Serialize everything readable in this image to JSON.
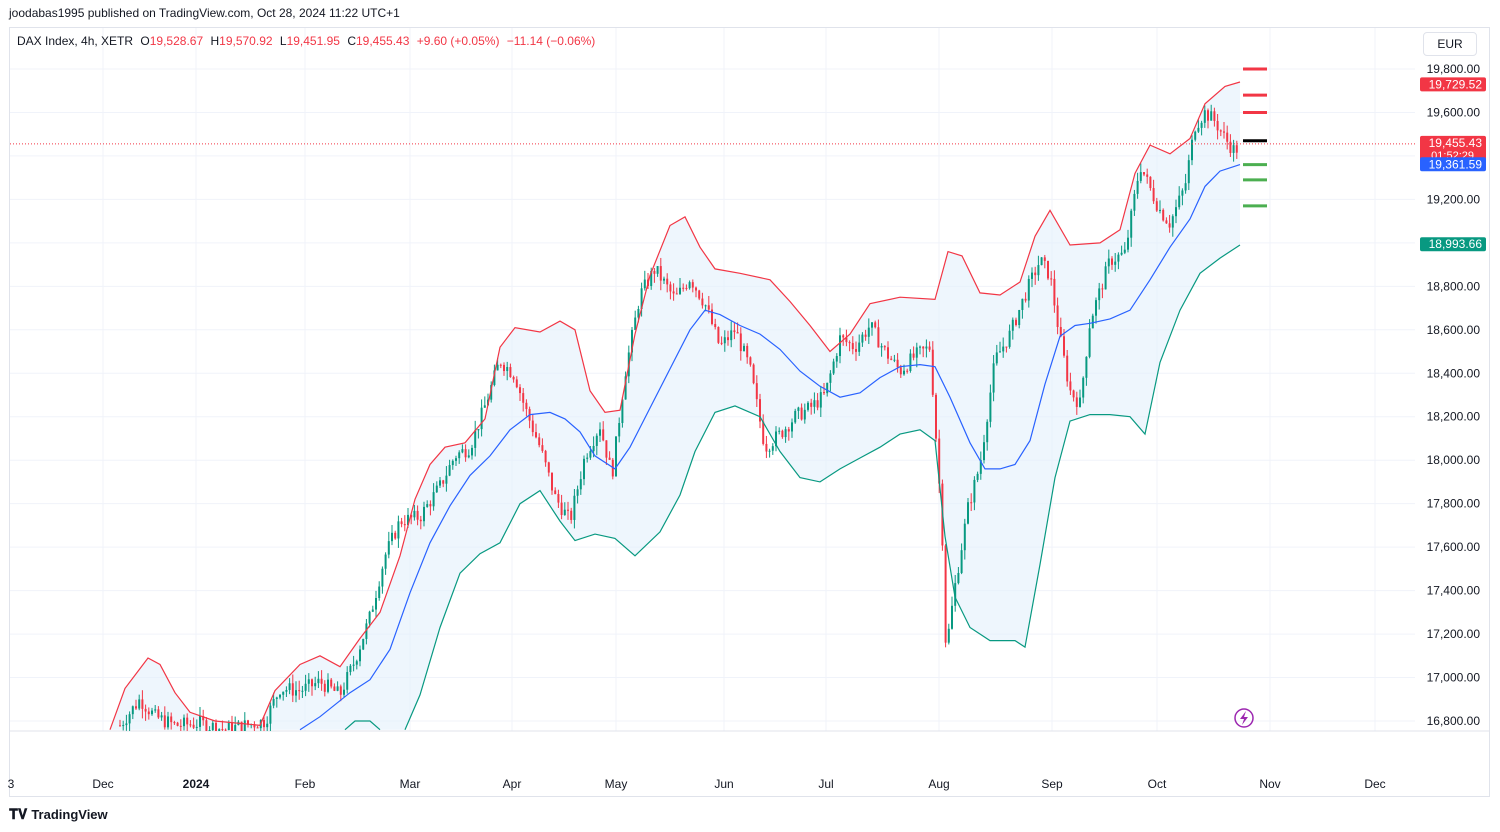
{
  "header": {
    "publish_text": "joodabas1995 published on TradingView.com, Oct 28, 2024 11:22 UTC+1"
  },
  "legend": {
    "symbol": "DAX Index, 4h, XETR",
    "open_label": "O",
    "open": "19,528.67",
    "high_label": "H",
    "high": "19,570.92",
    "low_label": "L",
    "low": "19,451.95",
    "close_label": "C",
    "close": "19,455.43",
    "change": "+9.60 (+0.05%)",
    "change2": "−11.14 (−0.06%)"
  },
  "currency": "EUR",
  "footer": {
    "brand": "TradingView"
  },
  "colors": {
    "up": "#089981",
    "down": "#f23645",
    "upper_band": "#f23645",
    "basis": "#2962ff",
    "lower_band": "#089981",
    "band_fill": "#e3f0fb"
  },
  "chart_data": {
    "type": "candlestick",
    "instrument": "DAX Index, 4h, XETR",
    "ylim": [
      16760,
      19930
    ],
    "y_ticks": [
      16800,
      17000,
      17200,
      17400,
      17600,
      17800,
      18000,
      18200,
      18400,
      18600,
      18800,
      19000,
      19200,
      19400,
      19600,
      19800
    ],
    "y_tick_labels": [
      "16,800.00",
      "17,000.00",
      "17,200.00",
      "17,400.00",
      "17,600.00",
      "17,800.00",
      "18,000.00",
      "18,200.00",
      "18,400.00",
      "18,600.00",
      "18,800.00",
      "19,000.00",
      "19,200.00",
      "19,400.00",
      "19,600.00",
      "19,800.00"
    ],
    "x_labels": [
      "3",
      "Dec",
      "2024",
      "Feb",
      "Mar",
      "Apr",
      "May",
      "Jun",
      "Jul",
      "Aug",
      "Sep",
      "Oct",
      "Nov",
      "Dec"
    ],
    "x_label_index": [
      -11,
      83,
      176,
      285,
      390,
      492,
      596,
      704,
      806,
      919,
      1032,
      1137,
      1250,
      1355
    ],
    "price_labels": [
      {
        "value": 19729.52,
        "text": "19,729.52",
        "color": "#f23645"
      },
      {
        "value": 19455.43,
        "text": "19,455.43",
        "sub": "01:52:29",
        "color": "#f23645"
      },
      {
        "value": 19361.59,
        "text": "19,361.59",
        "color": "#2962ff"
      },
      {
        "value": 18993.66,
        "text": "18,993.66",
        "color": "#089981"
      }
    ],
    "last_price": 19455.43,
    "bollinger": {
      "upper": [
        [
          110,
          16760
        ],
        [
          125,
          16950
        ],
        [
          148,
          17090
        ],
        [
          160,
          17060
        ],
        [
          175,
          16930
        ],
        [
          190,
          16840
        ],
        [
          215,
          16800
        ],
        [
          260,
          16780
        ],
        [
          275,
          16940
        ],
        [
          300,
          17060
        ],
        [
          320,
          17100
        ],
        [
          340,
          17050
        ],
        [
          360,
          17180
        ],
        [
          380,
          17300
        ],
        [
          400,
          17560
        ],
        [
          415,
          17820
        ],
        [
          430,
          17980
        ],
        [
          445,
          18060
        ],
        [
          465,
          18080
        ],
        [
          485,
          18190
        ],
        [
          500,
          18520
        ],
        [
          515,
          18610
        ],
        [
          540,
          18590
        ],
        [
          560,
          18640
        ],
        [
          575,
          18600
        ],
        [
          590,
          18320
        ],
        [
          605,
          18220
        ],
        [
          620,
          18230
        ],
        [
          635,
          18580
        ],
        [
          650,
          18850
        ],
        [
          670,
          19080
        ],
        [
          685,
          19120
        ],
        [
          700,
          18980
        ],
        [
          715,
          18880
        ],
        [
          740,
          18860
        ],
        [
          770,
          18830
        ],
        [
          790,
          18730
        ],
        [
          810,
          18620
        ],
        [
          830,
          18500
        ],
        [
          850,
          18580
        ],
        [
          870,
          18720
        ],
        [
          900,
          18750
        ],
        [
          935,
          18740
        ],
        [
          948,
          18960
        ],
        [
          962,
          18940
        ],
        [
          980,
          18770
        ],
        [
          1000,
          18760
        ],
        [
          1020,
          18820
        ],
        [
          1035,
          19030
        ],
        [
          1050,
          19150
        ],
        [
          1070,
          18990
        ],
        [
          1100,
          19000
        ],
        [
          1120,
          19060
        ],
        [
          1135,
          19320
        ],
        [
          1150,
          19450
        ],
        [
          1170,
          19410
        ],
        [
          1190,
          19480
        ],
        [
          1205,
          19640
        ],
        [
          1225,
          19720
        ],
        [
          1240,
          19740
        ]
      ],
      "basis": [
        [
          300,
          16760
        ],
        [
          320,
          16820
        ],
        [
          350,
          16930
        ],
        [
          370,
          16990
        ],
        [
          390,
          17130
        ],
        [
          410,
          17390
        ],
        [
          430,
          17620
        ],
        [
          450,
          17790
        ],
        [
          470,
          17930
        ],
        [
          490,
          18020
        ],
        [
          510,
          18140
        ],
        [
          530,
          18210
        ],
        [
          550,
          18220
        ],
        [
          565,
          18190
        ],
        [
          580,
          18130
        ],
        [
          595,
          18020
        ],
        [
          615,
          17960
        ],
        [
          630,
          18060
        ],
        [
          650,
          18240
        ],
        [
          670,
          18420
        ],
        [
          690,
          18600
        ],
        [
          705,
          18690
        ],
        [
          720,
          18670
        ],
        [
          740,
          18620
        ],
        [
          760,
          18580
        ],
        [
          780,
          18510
        ],
        [
          800,
          18410
        ],
        [
          820,
          18340
        ],
        [
          840,
          18290
        ],
        [
          860,
          18310
        ],
        [
          880,
          18380
        ],
        [
          900,
          18430
        ],
        [
          920,
          18440
        ],
        [
          935,
          18430
        ],
        [
          950,
          18290
        ],
        [
          970,
          18080
        ],
        [
          985,
          17960
        ],
        [
          1000,
          17960
        ],
        [
          1015,
          17980
        ],
        [
          1030,
          18090
        ],
        [
          1045,
          18350
        ],
        [
          1060,
          18570
        ],
        [
          1075,
          18620
        ],
        [
          1090,
          18630
        ],
        [
          1110,
          18650
        ],
        [
          1130,
          18690
        ],
        [
          1150,
          18830
        ],
        [
          1170,
          18980
        ],
        [
          1190,
          19110
        ],
        [
          1205,
          19260
        ],
        [
          1220,
          19330
        ],
        [
          1240,
          19360
        ]
      ],
      "lower": [
        [
          345,
          16760
        ],
        [
          355,
          16800
        ],
        [
          370,
          16800
        ],
        [
          380,
          16760
        ]
      ],
      "lower2": [
        [
          405,
          16760
        ],
        [
          420,
          16920
        ],
        [
          440,
          17230
        ],
        [
          460,
          17480
        ],
        [
          480,
          17570
        ],
        [
          500,
          17620
        ],
        [
          520,
          17800
        ],
        [
          540,
          17860
        ],
        [
          560,
          17720
        ],
        [
          575,
          17630
        ],
        [
          595,
          17660
        ],
        [
          615,
          17640
        ],
        [
          635,
          17560
        ],
        [
          660,
          17670
        ],
        [
          680,
          17840
        ],
        [
          695,
          18040
        ],
        [
          715,
          18220
        ],
        [
          735,
          18250
        ],
        [
          760,
          18200
        ],
        [
          780,
          18040
        ],
        [
          800,
          17920
        ],
        [
          820,
          17900
        ],
        [
          840,
          17960
        ],
        [
          860,
          18010
        ],
        [
          880,
          18060
        ],
        [
          900,
          18120
        ],
        [
          920,
          18140
        ],
        [
          935,
          18090
        ],
        [
          945,
          17650
        ],
        [
          955,
          17370
        ],
        [
          970,
          17230
        ],
        [
          990,
          17170
        ],
        [
          1015,
          17170
        ],
        [
          1025,
          17140
        ],
        [
          1040,
          17520
        ],
        [
          1055,
          17920
        ],
        [
          1070,
          18180
        ],
        [
          1090,
          18210
        ],
        [
          1110,
          18210
        ],
        [
          1130,
          18200
        ],
        [
          1145,
          18120
        ],
        [
          1160,
          18450
        ],
        [
          1180,
          18690
        ],
        [
          1200,
          18860
        ],
        [
          1220,
          18930
        ],
        [
          1240,
          18990
        ]
      ]
    },
    "candles_note": "4h OHLC candles spanning Nov 2023 to Oct 28, 2024 following the price path below",
    "price_path": [
      [
        120,
        16780
      ],
      [
        140,
        16900
      ],
      [
        155,
        16820
      ],
      [
        175,
        16780
      ],
      [
        200,
        16790
      ],
      [
        225,
        16760
      ],
      [
        265,
        16800
      ],
      [
        280,
        16950
      ],
      [
        300,
        16940
      ],
      [
        320,
        16980
      ],
      [
        340,
        16920
      ],
      [
        355,
        17080
      ],
      [
        370,
        17280
      ],
      [
        385,
        17560
      ],
      [
        400,
        17720
      ],
      [
        420,
        17740
      ],
      [
        440,
        17880
      ],
      [
        455,
        18020
      ],
      [
        470,
        18060
      ],
      [
        485,
        18250
      ],
      [
        500,
        18460
      ],
      [
        515,
        18390
      ],
      [
        525,
        18240
      ],
      [
        540,
        18060
      ],
      [
        555,
        17830
      ],
      [
        570,
        17720
      ],
      [
        585,
        18020
      ],
      [
        600,
        18160
      ],
      [
        612,
        17930
      ],
      [
        625,
        18400
      ],
      [
        640,
        18760
      ],
      [
        655,
        18880
      ],
      [
        675,
        18740
      ],
      [
        690,
        18840
      ],
      [
        705,
        18720
      ],
      [
        720,
        18520
      ],
      [
        735,
        18600
      ],
      [
        750,
        18420
      ],
      [
        765,
        18060
      ],
      [
        780,
        18120
      ],
      [
        795,
        18200
      ],
      [
        810,
        18240
      ],
      [
        825,
        18300
      ],
      [
        840,
        18560
      ],
      [
        855,
        18520
      ],
      [
        870,
        18620
      ],
      [
        885,
        18500
      ],
      [
        900,
        18410
      ],
      [
        915,
        18480
      ],
      [
        930,
        18520
      ],
      [
        942,
        17700
      ],
      [
        946,
        17120
      ],
      [
        955,
        17420
      ],
      [
        968,
        17780
      ],
      [
        980,
        17980
      ],
      [
        995,
        18460
      ],
      [
        1010,
        18580
      ],
      [
        1025,
        18760
      ],
      [
        1040,
        18920
      ],
      [
        1050,
        18850
      ],
      [
        1060,
        18560
      ],
      [
        1070,
        18320
      ],
      [
        1080,
        18260
      ],
      [
        1090,
        18640
      ],
      [
        1100,
        18780
      ],
      [
        1110,
        18920
      ],
      [
        1125,
        18950
      ],
      [
        1140,
        19360
      ],
      [
        1150,
        19250
      ],
      [
        1160,
        19150
      ],
      [
        1170,
        19090
      ],
      [
        1185,
        19260
      ],
      [
        1195,
        19540
      ],
      [
        1205,
        19600
      ],
      [
        1215,
        19560
      ],
      [
        1225,
        19480
      ],
      [
        1235,
        19420
      ],
      [
        1240,
        19455
      ]
    ],
    "target_lines": [
      {
        "value": 19800,
        "color": "#f23645"
      },
      {
        "value": 19680,
        "color": "#f23645"
      },
      {
        "value": 19600,
        "color": "#f23645"
      },
      {
        "value": 19470,
        "color": "#000000"
      },
      {
        "value": 19360,
        "color": "#4caf50"
      },
      {
        "value": 19290,
        "color": "#4caf50"
      },
      {
        "value": 19170,
        "color": "#4caf50"
      }
    ]
  }
}
